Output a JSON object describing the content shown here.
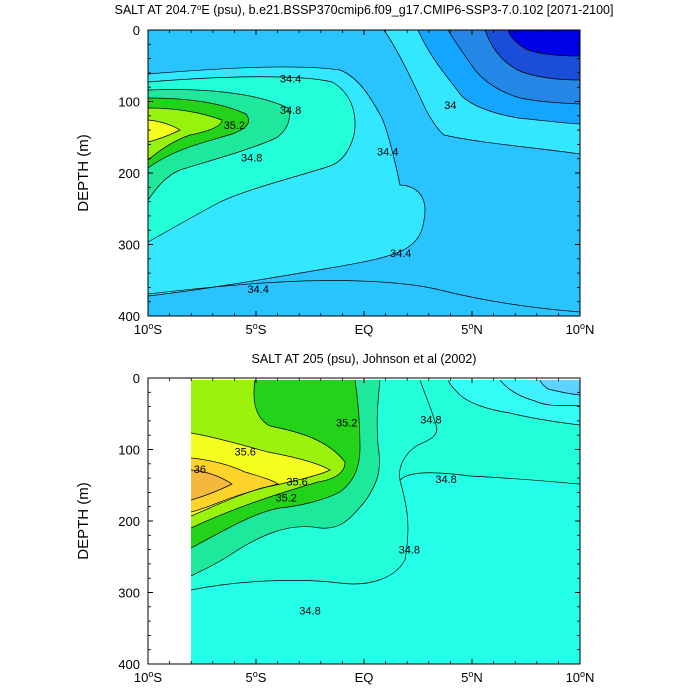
{
  "chart_data": [
    {
      "type": "contour",
      "title_main": "SALT AT 204.7",
      "title_deg": "o",
      "title_rest": "E (psu), b.e21.BSSP370cmip6.f09_g17.CMIP6-SSP3-7.0.102 [2071-2100]",
      "xlabel": "",
      "ylabel": "DEPTH (m)",
      "xlim": [
        -10,
        10
      ],
      "ylim": [
        0,
        400
      ],
      "y_inverted": true,
      "x_ticks": [
        {
          "value": -10,
          "num": "10",
          "deg": "o",
          "hemi": "S"
        },
        {
          "value": -5,
          "num": "5",
          "deg": "o",
          "hemi": "S"
        },
        {
          "value": 0,
          "num": "EQ",
          "deg": "",
          "hemi": ""
        },
        {
          "value": 5,
          "num": "5",
          "deg": "o",
          "hemi": "N"
        },
        {
          "value": 10,
          "num": "10",
          "deg": "o",
          "hemi": "N"
        }
      ],
      "y_ticks": [
        "0",
        "100",
        "200",
        "300",
        "400"
      ],
      "y_tick_values": [
        0,
        100,
        200,
        300,
        400
      ],
      "contour_labels": [
        {
          "text": "34.4",
          "x": -3.4,
          "y": 68
        },
        {
          "text": "34.8",
          "x": -3.4,
          "y": 112
        },
        {
          "text": "35.2",
          "x": -6.0,
          "y": 133
        },
        {
          "text": "34.8",
          "x": -5.2,
          "y": 178
        },
        {
          "text": "34",
          "x": 4.0,
          "y": 105
        },
        {
          "text": "34.4",
          "x": 1.1,
          "y": 170
        },
        {
          "text": "34.4",
          "x": 1.7,
          "y": 312
        },
        {
          "text": "34.4",
          "x": -4.9,
          "y": 362
        }
      ]
    },
    {
      "type": "contour",
      "title_main": "SALT AT 205 (psu), Johnson et al (2002)",
      "xlabel": "",
      "ylabel": "DEPTH (m)",
      "xlim": [
        -10,
        10
      ],
      "ylim": [
        0,
        400
      ],
      "y_inverted": true,
      "data_xlim": [
        -8,
        10
      ],
      "x_ticks": [
        {
          "value": -10,
          "num": "10",
          "deg": "o",
          "hemi": "S"
        },
        {
          "value": -5,
          "num": "5",
          "deg": "o",
          "hemi": "S"
        },
        {
          "value": 0,
          "num": "EQ",
          "deg": "",
          "hemi": ""
        },
        {
          "value": 5,
          "num": "5",
          "deg": "o",
          "hemi": "N"
        },
        {
          "value": 10,
          "num": "10",
          "deg": "o",
          "hemi": "N"
        }
      ],
      "y_ticks": [
        "0",
        "100",
        "200",
        "300",
        "400"
      ],
      "y_tick_values": [
        0,
        100,
        200,
        300,
        400
      ],
      "contour_labels": [
        {
          "text": "35.2",
          "x": -0.8,
          "y": 62
        },
        {
          "text": "34.8",
          "x": 3.1,
          "y": 58
        },
        {
          "text": "35.6",
          "x": -5.5,
          "y": 103
        },
        {
          "text": "36",
          "x": -7.6,
          "y": 127
        },
        {
          "text": "35.6",
          "x": -3.1,
          "y": 145
        },
        {
          "text": "35.2",
          "x": -3.6,
          "y": 167
        },
        {
          "text": "34.8",
          "x": 3.8,
          "y": 141
        },
        {
          "text": "34.8",
          "x": 2.1,
          "y": 240
        },
        {
          "text": "34.8",
          "x": -2.5,
          "y": 325
        }
      ]
    }
  ]
}
